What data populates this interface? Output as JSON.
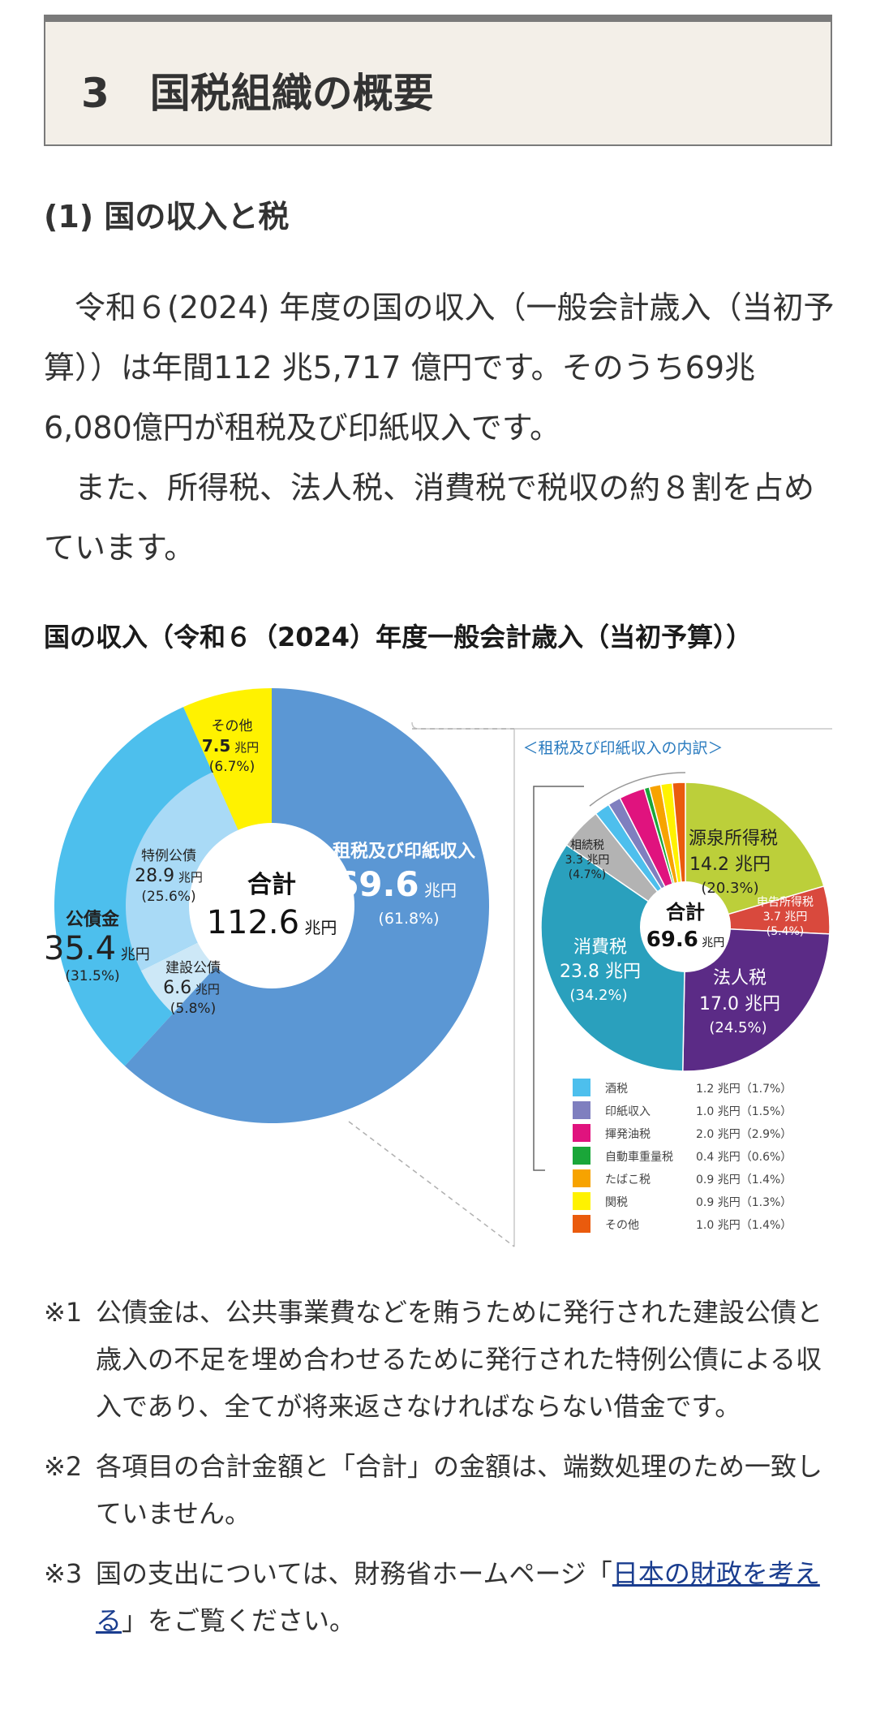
{
  "header": {
    "section_title": "3　国税組織の概要"
  },
  "subsection": {
    "title": "(1) 国の収入と税"
  },
  "paragraphs": [
    "　令和６(2024) 年度の国の収入（一般会計歳入（当初予算））は年間112 兆5,717 億円です。そのうち69兆6,080億円が租税及び印紙収入です。",
    "　また、所得税、法人税、消費税で税収の約８割を占めています。"
  ],
  "chart_heading": "国の収入（令和６（2024）年度一般会計歳入（当初予算））",
  "chart_data": [
    {
      "type": "pie",
      "title": "合計",
      "total_value": "112.6",
      "total_unit": "兆円",
      "unit": "兆円",
      "slices": [
        {
          "name": "租税及び印紙収入",
          "value": 69.6,
          "pct": "(61.8%)",
          "color": "#5b97d4"
        },
        {
          "name": "建設公債",
          "value": 6.6,
          "pct": "(5.8%)",
          "color": "#cde8f7"
        },
        {
          "name": "特例公債",
          "value": 28.9,
          "pct": "(25.6%)",
          "color": "#a9daf6"
        },
        {
          "name": "その他",
          "value": 7.5,
          "pct": "(6.7%)",
          "color": "#fff200"
        }
      ],
      "group_labels": [
        {
          "name": "公債金",
          "value": "35.4",
          "unit": "兆円",
          "pct": "(31.5%)",
          "color": "#4dbfed"
        }
      ],
      "value_labels": {
        "租税及び印紙収入": "69.6",
        "建設公債": "6.6",
        "特例公債": "28.9",
        "その他": "7.5"
      }
    },
    {
      "type": "pie",
      "title": "合計",
      "subtitle": "＜租税及び印紙収入の内訳＞",
      "total_value": "69.6",
      "total_unit": "兆円",
      "unit": "兆円",
      "slices": [
        {
          "name": "源泉所得税",
          "value": 14.2,
          "value_label": "14.2 兆円",
          "pct": "(20.3%)",
          "color": "#bccf3a"
        },
        {
          "name": "申告所得税",
          "value": 3.7,
          "value_label": "3.7 兆円",
          "pct": "(5.4%)",
          "color": "#d9493d"
        },
        {
          "name": "法人税",
          "value": 17.0,
          "value_label": "17.0 兆円",
          "pct": "(24.5%)",
          "color": "#5b2b86"
        },
        {
          "name": "消費税",
          "value": 23.8,
          "value_label": "23.8 兆円",
          "pct": "(34.2%)",
          "color": "#2aa0bd"
        },
        {
          "name": "相続税",
          "value": 3.3,
          "value_label": "3.3 兆円",
          "pct": "(4.7%)",
          "color": "#b3b3b3"
        },
        {
          "name": "酒税",
          "value": 1.2,
          "value_label": "1.2 兆円",
          "pct": "(1.7%)",
          "color": "#4dbfed"
        },
        {
          "name": "印紙収入",
          "value": 1.0,
          "value_label": "1.0 兆円",
          "pct": "(1.5%)",
          "color": "#7f7fbf"
        },
        {
          "name": "揮発油税",
          "value": 2.0,
          "value_label": "2.0 兆円",
          "pct": "(2.9%)",
          "color": "#e0137e"
        },
        {
          "name": "自動車重量税",
          "value": 0.4,
          "value_label": "0.4 兆円",
          "pct": "(0.6%)",
          "color": "#1aa639"
        },
        {
          "name": "たばこ税",
          "value": 0.9,
          "value_label": "0.9 兆円",
          "pct": "(1.4%)",
          "color": "#f7a300"
        },
        {
          "name": "関税",
          "value": 0.9,
          "value_label": "0.9 兆円",
          "pct": "(1.3%)",
          "color": "#fff200"
        },
        {
          "name": "その他",
          "value": 1.0,
          "value_label": "1.0 兆円",
          "pct": "(1.4%)",
          "color": "#ea5b0d"
        }
      ],
      "legend": [
        {
          "name": "酒税",
          "value": "1.2 兆円",
          "pct": "(1.7%)",
          "color": "#4dbfed"
        },
        {
          "name": "印紙収入",
          "value": "1.0 兆円",
          "pct": "(1.5%)",
          "color": "#7f7fbf"
        },
        {
          "name": "揮発油税",
          "value": "2.0 兆円",
          "pct": "(2.9%)",
          "color": "#e0137e"
        },
        {
          "name": "自動車重量税",
          "value": "0.4 兆円",
          "pct": "(0.6%)",
          "color": "#1aa639"
        },
        {
          "name": "たばこ税",
          "value": "0.9 兆円",
          "pct": "(1.4%)",
          "color": "#f7a300"
        },
        {
          "name": "関税",
          "value": "0.9 兆円",
          "pct": "(1.3%)",
          "color": "#fff200"
        },
        {
          "name": "その他",
          "value": "1.0 兆円",
          "pct": "(1.4%)",
          "color": "#ea5b0d"
        }
      ]
    }
  ],
  "notes": [
    {
      "num": "※1",
      "text": "公債金は、公共事業費などを賄うために発行された建設公債と歳入の不足を埋め合わせるために発行された特例公債による収入であり、全てが将来返さなければならない借金です。"
    },
    {
      "num": "※2",
      "text": "各項目の合計金額と「合計」の金額は、端数処理のため一致していません。"
    },
    {
      "num": "※3",
      "text_before": "国の支出については、財務省ホームページ「",
      "link_text": "日本の財政を考える",
      "text_after": "」をご覧ください。"
    }
  ],
  "colors": {
    "header_bg": "#f3efe8",
    "header_border": "#7a7a7a",
    "link": "#1a3d8f"
  }
}
